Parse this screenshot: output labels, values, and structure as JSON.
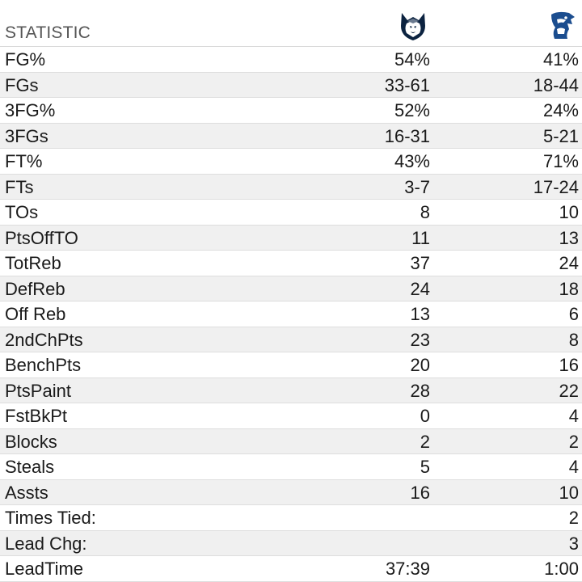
{
  "header": {
    "statistic_label": "STATISTIC",
    "home_logo_icon": "husky-logo-icon",
    "away_logo_icon": "bluejay-logo-icon",
    "home_color": "#0c2340",
    "away_color": "#1b4d8f"
  },
  "rows": [
    {
      "label": "FG%",
      "home": "54%",
      "away": "41%"
    },
    {
      "label": "FGs",
      "home": "33-61",
      "away": "18-44"
    },
    {
      "label": "3FG%",
      "home": "52%",
      "away": "24%"
    },
    {
      "label": "3FGs",
      "home": "16-31",
      "away": "5-21"
    },
    {
      "label": "FT%",
      "home": "43%",
      "away": "71%"
    },
    {
      "label": "FTs",
      "home": "3-7",
      "away": "17-24"
    },
    {
      "label": "TOs",
      "home": "8",
      "away": "10"
    },
    {
      "label": "PtsOffTO",
      "home": "11",
      "away": "13"
    },
    {
      "label": "TotReb",
      "home": "37",
      "away": "24"
    },
    {
      "label": "DefReb",
      "home": "24",
      "away": "18"
    },
    {
      "label": "Off Reb",
      "home": "13",
      "away": "6"
    },
    {
      "label": "2ndChPts",
      "home": "23",
      "away": "8"
    },
    {
      "label": "BenchPts",
      "home": "20",
      "away": "16"
    },
    {
      "label": "PtsPaint",
      "home": "28",
      "away": "22"
    },
    {
      "label": "FstBkPt",
      "home": "0",
      "away": "4"
    },
    {
      "label": "Blocks",
      "home": "2",
      "away": "2"
    },
    {
      "label": "Steals",
      "home": "5",
      "away": "4"
    },
    {
      "label": "Assts",
      "home": "16",
      "away": "10"
    },
    {
      "label": "Times Tied:",
      "home": "",
      "away": "2"
    },
    {
      "label": "Lead Chg:",
      "home": "",
      "away": "3"
    },
    {
      "label": "LeadTime",
      "home": "37:39",
      "away": "1:00"
    }
  ]
}
